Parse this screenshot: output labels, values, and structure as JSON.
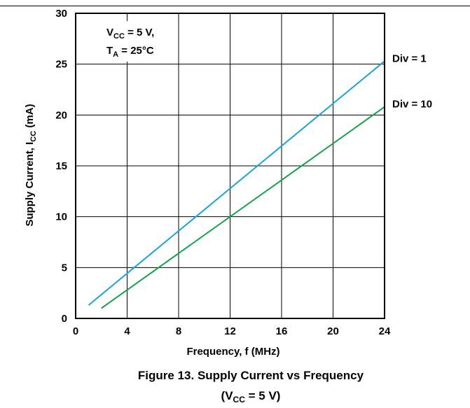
{
  "chart_data": {
    "type": "line",
    "xlabel": {
      "main": "Frequency, f (MHz)"
    },
    "ylabel": {
      "main": "Supply Current, I",
      "sub": "CC",
      "tail": " (mA)"
    },
    "xlim": [
      0,
      24
    ],
    "ylim": [
      0,
      30
    ],
    "x_ticks": [
      0,
      4,
      8,
      12,
      16,
      20,
      24
    ],
    "y_ticks": [
      0,
      5,
      10,
      15,
      20,
      25,
      30
    ],
    "grid": true,
    "series": [
      {
        "name": "Div = 1",
        "color": "#1aa3d9",
        "x": [
          1,
          24
        ],
        "y": [
          1.3,
          25.3
        ]
      },
      {
        "name": "Div = 10",
        "color": "#13a04a",
        "x": [
          2,
          24
        ],
        "y": [
          1.0,
          20.8
        ]
      }
    ],
    "annotation": {
      "line1": {
        "main": "V",
        "sub": "CC",
        "tail": " = 5 V,"
      },
      "line2": {
        "main": "T",
        "sub": "A",
        "tail": " = 25°C"
      }
    },
    "caption": {
      "line1": "Figure 13. Supply Current vs Frequency",
      "line2": {
        "open": "(V",
        "sub": "CC",
        "tail": " = 5 V)"
      }
    }
  }
}
